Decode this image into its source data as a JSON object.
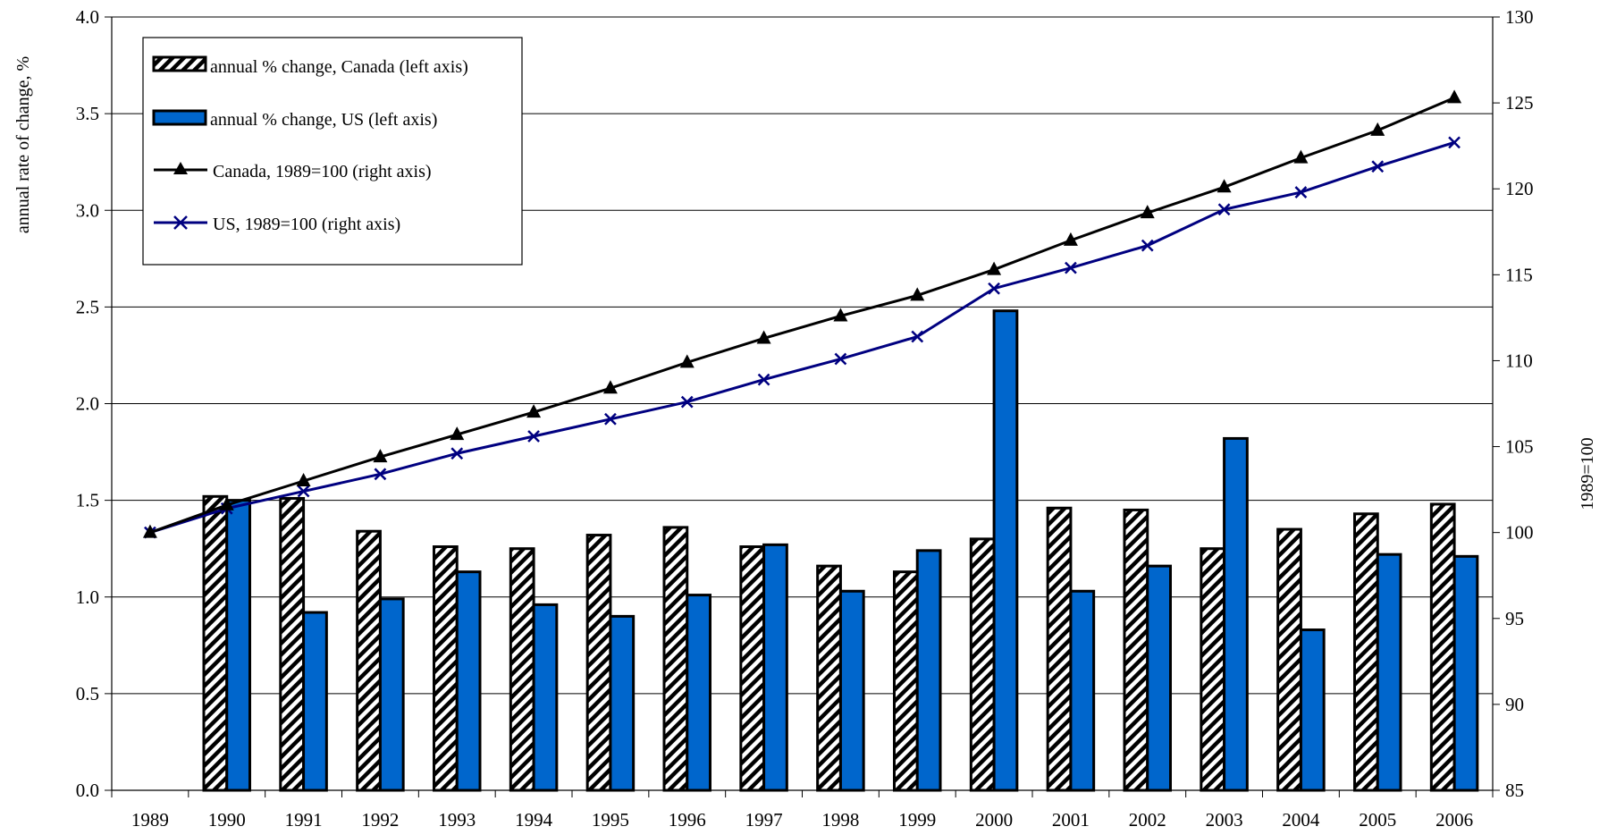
{
  "chart_data": {
    "type": "bar",
    "categories": [
      "1989",
      "1990",
      "1991",
      "1992",
      "1993",
      "1994",
      "1995",
      "1996",
      "1997",
      "1998",
      "1999",
      "2000",
      "2001",
      "2002",
      "2003",
      "2004",
      "2005",
      "2006"
    ],
    "left_axis": {
      "label": "annual rate of change, %",
      "ylim": [
        0,
        4
      ],
      "ticks": [
        "0.0",
        "0.5",
        "1.0",
        "1.5",
        "2.0",
        "2.5",
        "3.0",
        "3.5",
        "4.0"
      ]
    },
    "right_axis": {
      "label": "1989=100",
      "ylim": [
        85,
        130
      ],
      "ticks": [
        "85",
        "90",
        "95",
        "100",
        "105",
        "110",
        "115",
        "120",
        "125",
        "130"
      ]
    },
    "series": [
      {
        "name": "annual % change, Canada (left axis)",
        "kind": "bar",
        "axis": "left",
        "style": "hatched",
        "values": [
          null,
          1.52,
          1.51,
          1.34,
          1.26,
          1.25,
          1.32,
          1.36,
          1.26,
          1.16,
          1.13,
          1.3,
          1.46,
          1.45,
          1.25,
          1.35,
          1.43,
          1.48
        ]
      },
      {
        "name": "annual % change, US (left axis)",
        "kind": "bar",
        "axis": "left",
        "color": "#0066cc",
        "values": [
          null,
          1.5,
          0.92,
          0.99,
          1.13,
          0.96,
          0.9,
          1.01,
          1.27,
          1.03,
          1.24,
          2.48,
          1.03,
          1.16,
          1.82,
          0.83,
          1.22,
          1.21
        ]
      },
      {
        "name": "Canada, 1989=100 (right axis)",
        "kind": "line",
        "axis": "right",
        "color": "#000000",
        "marker": "triangle",
        "values": [
          100,
          101.6,
          103.0,
          104.4,
          105.7,
          107.0,
          108.4,
          109.9,
          111.3,
          112.6,
          113.8,
          115.3,
          117.0,
          118.6,
          120.1,
          121.8,
          123.4,
          125.3
        ]
      },
      {
        "name": "US, 1989=100 (right axis)",
        "kind": "line",
        "axis": "right",
        "color": "#000080",
        "marker": "x",
        "values": [
          100,
          101.4,
          102.4,
          103.4,
          104.6,
          105.6,
          106.6,
          107.6,
          108.9,
          110.1,
          111.4,
          114.2,
          115.4,
          116.7,
          118.8,
          119.8,
          121.3,
          122.7
        ]
      }
    ],
    "legend": "top-left",
    "grid": true
  }
}
